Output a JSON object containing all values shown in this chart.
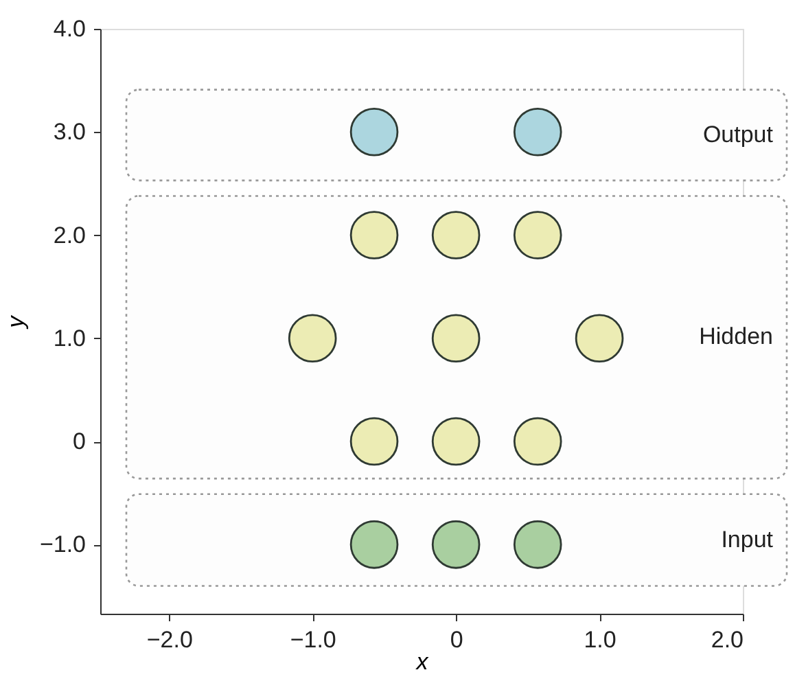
{
  "chart_data": {
    "type": "scatter",
    "xlabel": "x",
    "ylabel": "y",
    "xlim": [
      -2.48,
      2.0
    ],
    "ylim": [
      -1.67,
      4.0
    ],
    "xticks": [
      {
        "value": -2,
        "label": "−2.0"
      },
      {
        "value": -1,
        "label": "−1.0"
      },
      {
        "value": 0,
        "label": "0"
      },
      {
        "value": 1,
        "label": "1.0"
      },
      {
        "value": 2,
        "label": "2.0"
      }
    ],
    "yticks": [
      {
        "value": -1,
        "label": "−1.0"
      },
      {
        "value": 0,
        "label": "0"
      },
      {
        "value": 1,
        "label": "1.0"
      },
      {
        "value": 2,
        "label": "2.0"
      },
      {
        "value": 3,
        "label": "3.0"
      },
      {
        "value": 4,
        "label": "4.0"
      }
    ],
    "series": [
      {
        "color": "#a9cfa0",
        "x": [
          -0.57,
          0,
          0.57
        ],
        "values": [
          -1,
          -1,
          -1
        ]
      },
      {
        "color": "#ececb4",
        "x": [
          -0.57,
          0,
          0.57,
          -1.0,
          0,
          1.0,
          -0.57,
          0,
          0.57
        ],
        "values": [
          0,
          0,
          0,
          1,
          1,
          1,
          2,
          2,
          2
        ]
      },
      {
        "color": "#acd6df",
        "x": [
          -0.57,
          0.57
        ],
        "values": [
          3,
          3
        ]
      }
    ],
    "bands": [
      {
        "axis": "y",
        "from": 2.53,
        "to": 3.41,
        "label": "Output",
        "color": "#999999"
      },
      {
        "axis": "y",
        "from": -0.36,
        "to": 2.38,
        "label": "Hidden",
        "color": "#999999"
      },
      {
        "axis": "y",
        "from": -1.4,
        "to": -0.51,
        "label": "Input",
        "color": "#999999"
      }
    ],
    "marker": "circle",
    "grid": false
  }
}
